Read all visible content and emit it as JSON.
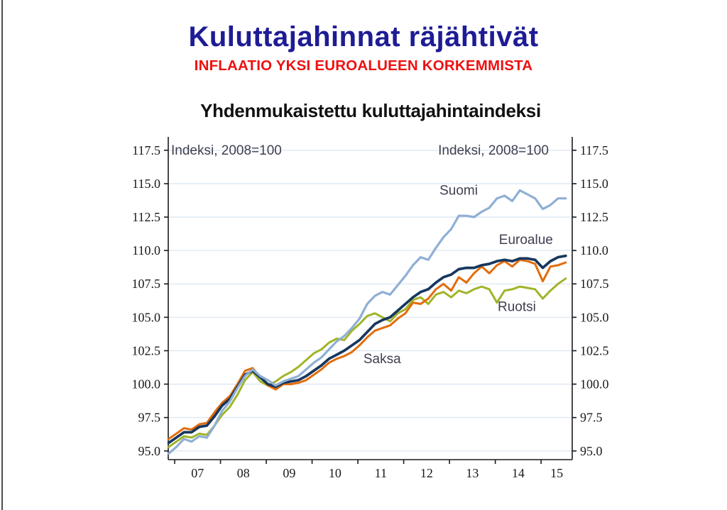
{
  "page": {
    "title": "Kuluttajahinnat räjähtivät",
    "subtitle": "INFLAATIO YKSI EUROALUEEN KORKEMMISTA",
    "title_color": "#1e1c94",
    "subtitle_color": "#ee1111"
  },
  "chart_data": {
    "type": "line",
    "title": "Yhdenmukaistettu kuluttajahintaindeksi",
    "unit_label_left": "Indeksi, 2008=100",
    "unit_label_right": "Indeksi, 2008=100",
    "x_range": [
      2006.86,
      2015.68
    ],
    "y_range": [
      94.35,
      118.5
    ],
    "x_tick_years": [
      2007,
      2008,
      2009,
      2010,
      2011,
      2012,
      2013,
      2014,
      2015
    ],
    "x_tick_labels": [
      "07",
      "08",
      "09",
      "10",
      "11",
      "12",
      "13",
      "14",
      "15"
    ],
    "y_ticks": [
      95.0,
      97.5,
      100.0,
      102.5,
      105.0,
      107.5,
      110.0,
      112.5,
      115.0,
      117.5
    ],
    "grid": true,
    "legend_position": "inline-labels",
    "colors": {
      "axis": "#1a1a1a",
      "grid": "#dce6f2",
      "inchart_text": "#3f3f51"
    },
    "x_start": 2006.87,
    "x_step": 0.166667,
    "series": [
      {
        "name": "Ruotsi",
        "color": "#a0b428",
        "stroke_width": 3.0,
        "label_anchor": [
          2014.47,
          105.8
        ],
        "values": [
          95.3,
          95.7,
          96.1,
          96.0,
          96.3,
          96.2,
          96.9,
          97.7,
          98.3,
          99.2,
          100.3,
          100.9,
          100.2,
          99.9,
          100.2,
          100.6,
          100.9,
          101.3,
          101.8,
          102.3,
          102.6,
          103.1,
          103.4,
          103.3,
          104.0,
          104.5,
          105.1,
          105.3,
          105.0,
          104.7,
          105.3,
          105.6,
          106.3,
          106.5,
          106.0,
          106.7,
          106.9,
          106.5,
          107.0,
          106.8,
          107.1,
          107.3,
          107.1,
          106.1,
          107.0,
          107.1,
          107.3,
          107.2,
          107.1,
          106.4,
          107.0,
          107.5,
          107.9
        ]
      },
      {
        "name": "Saksa",
        "color": "#e36c0a",
        "stroke_width": 3.0,
        "label_anchor": [
          2011.53,
          101.9
        ],
        "values": [
          95.9,
          96.3,
          96.7,
          96.6,
          97.0,
          97.1,
          97.9,
          98.6,
          99.1,
          100.0,
          101.0,
          101.2,
          100.5,
          99.9,
          99.6,
          100.0,
          100.0,
          100.1,
          100.3,
          100.7,
          101.1,
          101.6,
          101.9,
          102.1,
          102.4,
          102.9,
          103.5,
          104.0,
          104.2,
          104.4,
          104.9,
          105.3,
          106.1,
          106.0,
          106.4,
          107.1,
          107.5,
          107.0,
          108.0,
          107.6,
          108.3,
          108.8,
          108.3,
          108.9,
          109.2,
          108.8,
          109.3,
          109.2,
          109.0,
          107.7,
          108.8,
          108.9,
          109.1
        ]
      },
      {
        "name": "Euroalue",
        "color": "#17375e",
        "stroke_width": 3.7,
        "label_anchor": [
          2014.67,
          110.8
        ],
        "values": [
          95.6,
          96.0,
          96.4,
          96.4,
          96.8,
          96.9,
          97.6,
          98.4,
          98.9,
          99.8,
          100.7,
          101.0,
          100.5,
          100.0,
          99.8,
          100.1,
          100.2,
          100.3,
          100.6,
          101.0,
          101.4,
          101.9,
          102.2,
          102.5,
          102.9,
          103.3,
          103.9,
          104.5,
          104.8,
          105.0,
          105.5,
          106.0,
          106.5,
          106.9,
          107.1,
          107.6,
          108.0,
          108.2,
          108.6,
          108.7,
          108.7,
          108.9,
          109.0,
          109.2,
          109.3,
          109.2,
          109.4,
          109.4,
          109.3,
          108.7,
          109.2,
          109.5,
          109.6
        ]
      },
      {
        "name": "Suomi",
        "color": "#8fafd4",
        "stroke_width": 3.2,
        "label_anchor": [
          2013.2,
          114.5
        ],
        "values": [
          94.8,
          95.3,
          95.9,
          95.7,
          96.1,
          96.0,
          96.9,
          98.0,
          98.7,
          99.7,
          100.6,
          101.1,
          100.6,
          100.3,
          99.9,
          100.2,
          100.4,
          100.6,
          101.1,
          101.6,
          102.0,
          102.6,
          103.2,
          103.6,
          104.2,
          104.9,
          106.0,
          106.6,
          106.9,
          106.7,
          107.4,
          108.1,
          108.9,
          109.5,
          109.3,
          110.2,
          111.0,
          111.6,
          112.6,
          112.6,
          112.5,
          112.9,
          113.2,
          113.9,
          114.1,
          113.7,
          114.5,
          114.2,
          113.9,
          113.1,
          113.4,
          113.9,
          113.9
        ]
      }
    ]
  }
}
